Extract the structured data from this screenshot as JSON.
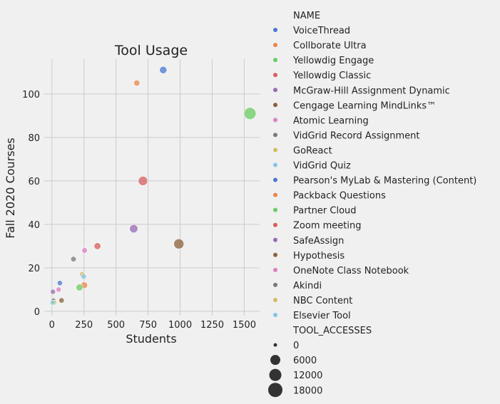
{
  "chart_data": {
    "type": "scatter",
    "title": "Tool Usage",
    "xlabel": "Students",
    "ylabel": "Fall 2020 Courses",
    "xlim": [
      -60,
      1620
    ],
    "ylim": [
      -2,
      116
    ],
    "xticks": [
      0,
      250,
      500,
      750,
      1000,
      1250,
      1500
    ],
    "yticks": [
      0,
      20,
      40,
      60,
      80,
      100
    ],
    "grid": true,
    "legend_position": "right, outside",
    "hue_title": "NAME",
    "size_title": "TOOL_ACCESSES",
    "size_levels": [
      0,
      6000,
      12000,
      18000
    ],
    "points": [
      {
        "name": "VoiceThread",
        "x": 868,
        "y": 111,
        "size": 3500,
        "color": "#4878d0"
      },
      {
        "name": "Collborate Ultra",
        "x": 662,
        "y": 105,
        "size": 1500,
        "color": "#ee854a"
      },
      {
        "name": "Yellowdig Engage",
        "x": 1545,
        "y": 91,
        "size": 17500,
        "color": "#6acc64"
      },
      {
        "name": "Yellowdig Classic",
        "x": 710,
        "y": 60,
        "size": 8000,
        "color": "#d65f5f"
      },
      {
        "name": "McGraw-Hill Assignment Dynamic",
        "x": 638,
        "y": 38,
        "size": 5500,
        "color": "#956cb4"
      },
      {
        "name": "Cengage Learning MindLinks™",
        "x": 990,
        "y": 31,
        "size": 10500,
        "color": "#8c613c"
      },
      {
        "name": "Atomic Learning",
        "x": 255,
        "y": 28,
        "size": 900,
        "color": "#dc7ec0"
      },
      {
        "name": "VidGrid Record Assignment",
        "x": 168,
        "y": 24,
        "size": 900,
        "color": "#797979"
      },
      {
        "name": "GoReact",
        "x": 236,
        "y": 17,
        "size": 1000,
        "color": "#d5bb67"
      },
      {
        "name": "VidGrid Quiz",
        "x": 248,
        "y": 16,
        "size": 900,
        "color": "#82c6e2"
      },
      {
        "name": "Pearson's MyLab & Mastering (Content)",
        "x": 62,
        "y": 13,
        "size": 700,
        "color": "#4878d0"
      },
      {
        "name": "Packback Questions",
        "x": 252,
        "y": 12,
        "size": 2400,
        "color": "#ee854a"
      },
      {
        "name": "Partner Cloud",
        "x": 215,
        "y": 11,
        "size": 2800,
        "color": "#6acc64"
      },
      {
        "name": "Zoom meeting",
        "x": 355,
        "y": 30,
        "size": 2600,
        "color": "#d65f5f"
      },
      {
        "name": "SafeAssign",
        "x": 8,
        "y": 9,
        "size": 600,
        "color": "#956cb4"
      },
      {
        "name": "Hypothesis",
        "x": 75,
        "y": 5,
        "size": 800,
        "color": "#8c613c"
      },
      {
        "name": "OneNote Class Notebook",
        "x": 52,
        "y": 10,
        "size": 600,
        "color": "#dc7ec0"
      },
      {
        "name": "Akindi",
        "x": 12,
        "y": 5,
        "size": 400,
        "color": "#797979"
      },
      {
        "name": "NBC Content",
        "x": 18,
        "y": 4,
        "size": 500,
        "color": "#d5bb67"
      },
      {
        "name": "Elsevier Tool",
        "x": 5,
        "y": 4,
        "size": 500,
        "color": "#82c6e2"
      }
    ]
  }
}
